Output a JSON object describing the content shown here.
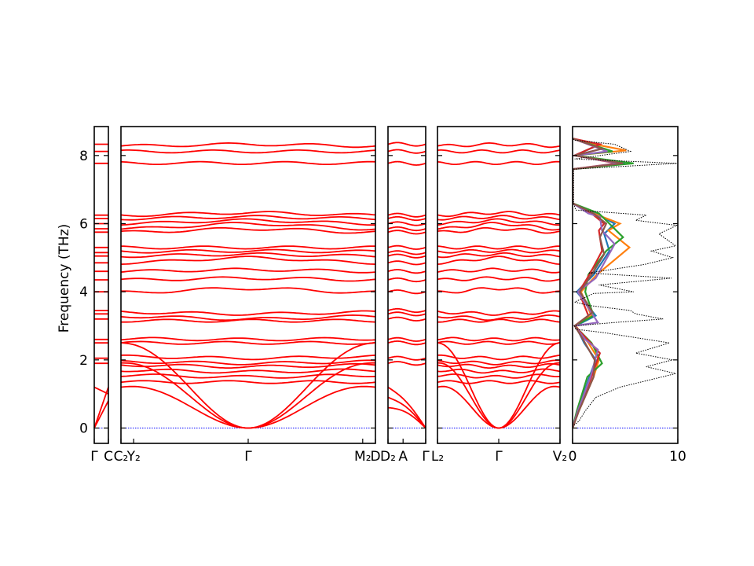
{
  "chart_data": {
    "type": "line",
    "ylabel": "Frequency (THz)",
    "ylim": [
      -0.45,
      8.85
    ],
    "y_ticks": [
      0,
      2,
      4,
      6,
      8
    ],
    "line_color": "#ff0000",
    "zero_line_color": "#0000ff",
    "dos_total_color": "#000000",
    "band_panels": [
      {
        "id": "p1",
        "ticks": [
          {
            "x": 0,
            "label": "Γ"
          },
          {
            "x": 1,
            "label": "C"
          }
        ]
      },
      {
        "id": "p2",
        "ticks": [
          {
            "x": 0,
            "label": "C₂"
          },
          {
            "x": 0.05,
            "label": "Y₂"
          },
          {
            "x": 0.5,
            "label": "Γ"
          },
          {
            "x": 0.95,
            "label": "M₂"
          },
          {
            "x": 1,
            "label": "D"
          }
        ]
      },
      {
        "id": "p3",
        "ticks": [
          {
            "x": 0,
            "label": "D₂"
          },
          {
            "x": 0.4,
            "label": "A"
          },
          {
            "x": 1,
            "label": "Γ"
          }
        ]
      },
      {
        "id": "p4",
        "ticks": [
          {
            "x": 0,
            "label": "L₂"
          },
          {
            "x": 0.5,
            "label": "Γ"
          },
          {
            "x": 1,
            "label": "V₂"
          }
        ]
      }
    ],
    "flat_bands": [
      8.33,
      8.12,
      7.77,
      6.25,
      6.15,
      6.0,
      5.85,
      5.75,
      5.3,
      5.15,
      5.05,
      4.85,
      4.6,
      4.35,
      4.0,
      3.45,
      3.35,
      3.2,
      2.6,
      2.5,
      2.05,
      1.9
    ],
    "gamma_modulated_bands": [
      {
        "edge": 8.28,
        "center": 8.33
      },
      {
        "edge": 8.12,
        "center": 8.12
      },
      {
        "edge": 7.78,
        "center": 7.78
      },
      {
        "edge": 6.25,
        "center": 6.32
      },
      {
        "edge": 6.15,
        "center": 6.2
      },
      {
        "edge": 6.0,
        "center": 6.1
      },
      {
        "edge": 5.85,
        "center": 6.0
      },
      {
        "edge": 5.75,
        "center": 5.85
      },
      {
        "edge": 5.3,
        "center": 5.3
      },
      {
        "edge": 5.18,
        "center": 5.2
      },
      {
        "edge": 5.05,
        "center": 5.1
      },
      {
        "edge": 4.85,
        "center": 5.0
      },
      {
        "edge": 4.6,
        "center": 4.65
      },
      {
        "edge": 4.35,
        "center": 4.4
      },
      {
        "edge": 3.98,
        "center": 4.1
      },
      {
        "edge": 3.4,
        "center": 3.35
      },
      {
        "edge": 3.28,
        "center": 3.2
      },
      {
        "edge": 3.15,
        "center": 3.15
      },
      {
        "edge": 2.62,
        "center": 2.6
      },
      {
        "edge": 2.5,
        "center": 2.5
      },
      {
        "edge": 2.1,
        "center": 2.05
      },
      {
        "edge": 1.95,
        "center": 1.9
      },
      {
        "edge": 1.85,
        "center": 1.8
      },
      {
        "edge": 1.7,
        "center": 1.65
      },
      {
        "edge": 1.55,
        "center": 1.5
      },
      {
        "edge": 1.35,
        "center": 1.35
      }
    ],
    "acoustic_branches": [
      {
        "edge": 1.2,
        "slope": 1.0
      },
      {
        "edge": 0.65,
        "slope": 1.0
      },
      {
        "edge": 0.0,
        "slope": 1.0
      }
    ],
    "dos": {
      "xlim": [
        0,
        10
      ],
      "x_ticks": [
        0,
        10
      ],
      "total": [
        [
          0,
          -0.45
        ],
        [
          0,
          0.05
        ],
        [
          0.6,
          0.2
        ],
        [
          1.2,
          0.5
        ],
        [
          2.2,
          0.9
        ],
        [
          4.5,
          1.2
        ],
        [
          8.5,
          1.5
        ],
        [
          9.8,
          1.6
        ],
        [
          7.0,
          1.8
        ],
        [
          9.5,
          2.0
        ],
        [
          6.0,
          2.2
        ],
        [
          9.2,
          2.5
        ],
        [
          3.0,
          2.8
        ],
        [
          0.3,
          2.9
        ],
        [
          0.2,
          3.0
        ],
        [
          4.0,
          3.1
        ],
        [
          8.6,
          3.2
        ],
        [
          6.0,
          3.35
        ],
        [
          5.5,
          3.45
        ],
        [
          1.5,
          3.6
        ],
        [
          0.2,
          3.7
        ],
        [
          2.0,
          3.95
        ],
        [
          5.8,
          4.0
        ],
        [
          2.5,
          4.2
        ],
        [
          9.4,
          4.4
        ],
        [
          1.5,
          4.55
        ],
        [
          6.8,
          4.8
        ],
        [
          9.5,
          5.0
        ],
        [
          7.5,
          5.2
        ],
        [
          9.8,
          5.35
        ],
        [
          8.2,
          5.7
        ],
        [
          9.9,
          5.95
        ],
        [
          6.0,
          6.1
        ],
        [
          7.0,
          6.25
        ],
        [
          0.3,
          6.4
        ],
        [
          0.1,
          6.6
        ],
        [
          0.1,
          7.6
        ],
        [
          9.9,
          7.77
        ],
        [
          0.2,
          7.9
        ],
        [
          5.5,
          8.12
        ],
        [
          4.0,
          8.33
        ],
        [
          0.2,
          8.45
        ],
        [
          0,
          8.5
        ]
      ],
      "partials": [
        {
          "color": "#1f77b4",
          "points": [
            [
              0,
              0
            ],
            [
              0.5,
              0.5
            ],
            [
              1.6,
              1.5
            ],
            [
              2.2,
              2.0
            ],
            [
              1.1,
              2.5
            ],
            [
              0.3,
              3.0
            ],
            [
              2.2,
              3.3
            ],
            [
              0.4,
              4.0
            ],
            [
              2.0,
              4.5
            ],
            [
              3.5,
              5.2
            ],
            [
              3.0,
              5.7
            ],
            [
              4.0,
              6.0
            ],
            [
              2.2,
              6.3
            ],
            [
              0,
              6.6
            ],
            [
              0,
              7.6
            ],
            [
              5.0,
              7.77
            ],
            [
              0.2,
              8.0
            ],
            [
              2.4,
              8.3
            ],
            [
              0,
              8.5
            ]
          ]
        },
        {
          "color": "#ff7f0e",
          "points": [
            [
              0,
              0
            ],
            [
              0.6,
              0.5
            ],
            [
              2.0,
              1.5
            ],
            [
              2.5,
              2.0
            ],
            [
              1.5,
              2.5
            ],
            [
              0.3,
              3.0
            ],
            [
              1.8,
              3.3
            ],
            [
              0.8,
              4.0
            ],
            [
              2.3,
              4.5
            ],
            [
              5.4,
              5.3
            ],
            [
              3.4,
              5.8
            ],
            [
              4.5,
              6.0
            ],
            [
              2.0,
              6.3
            ],
            [
              0,
              6.6
            ],
            [
              0,
              7.6
            ],
            [
              4.6,
              7.77
            ],
            [
              0.2,
              8.0
            ],
            [
              5.1,
              8.15
            ],
            [
              2.0,
              8.33
            ],
            [
              0,
              8.5
            ]
          ]
        },
        {
          "color": "#2ca02c",
          "points": [
            [
              0,
              0
            ],
            [
              0.4,
              0.5
            ],
            [
              1.4,
              1.5
            ],
            [
              2.8,
              1.9
            ],
            [
              1.8,
              2.5
            ],
            [
              0.2,
              3.0
            ],
            [
              2.0,
              3.3
            ],
            [
              1.2,
              4.0
            ],
            [
              1.5,
              4.5
            ],
            [
              3.2,
              5.2
            ],
            [
              4.8,
              5.6
            ],
            [
              3.5,
              6.0
            ],
            [
              2.5,
              6.3
            ],
            [
              0,
              6.6
            ],
            [
              0,
              7.6
            ],
            [
              5.8,
              7.77
            ],
            [
              0.2,
              8.0
            ],
            [
              3.8,
              8.12
            ],
            [
              0,
              8.5
            ]
          ]
        },
        {
          "color": "#d62728",
          "points": [
            [
              0,
              0
            ],
            [
              0.5,
              0.5
            ],
            [
              1.8,
              1.5
            ],
            [
              2.6,
              2.2
            ],
            [
              1.4,
              2.6
            ],
            [
              0.2,
              3.0
            ],
            [
              1.5,
              3.3
            ],
            [
              0.6,
              4.0
            ],
            [
              1.6,
              4.5
            ],
            [
              2.8,
              5.2
            ],
            [
              2.5,
              5.8
            ],
            [
              3.0,
              6.0
            ],
            [
              1.8,
              6.3
            ],
            [
              0,
              6.6
            ],
            [
              0,
              7.6
            ],
            [
              4.2,
              7.77
            ],
            [
              0.2,
              8.0
            ],
            [
              2.6,
              8.33
            ],
            [
              0,
              8.5
            ]
          ]
        },
        {
          "color": "#9467bd",
          "points": [
            [
              0,
              0
            ],
            [
              0.5,
              0.5
            ],
            [
              1.7,
              1.5
            ],
            [
              2.4,
              2.3
            ],
            [
              1.2,
              2.6
            ],
            [
              0.2,
              3.0
            ],
            [
              2.4,
              3.1
            ],
            [
              0.5,
              4.0
            ],
            [
              2.2,
              4.4
            ],
            [
              4.0,
              5.4
            ],
            [
              2.8,
              5.8
            ],
            [
              2.6,
              6.2
            ],
            [
              1.5,
              6.3
            ],
            [
              0,
              6.6
            ],
            [
              0,
              7.6
            ],
            [
              4.4,
              7.77
            ],
            [
              0.2,
              8.0
            ],
            [
              3.3,
              8.12
            ],
            [
              0,
              8.5
            ]
          ]
        },
        {
          "color": "#8c564b",
          "points": [
            [
              0,
              0
            ],
            [
              0.6,
              0.5
            ],
            [
              2.0,
              1.5
            ],
            [
              2.1,
              2.0
            ],
            [
              1.0,
              2.6
            ],
            [
              0.2,
              3.0
            ],
            [
              1.9,
              3.4
            ],
            [
              0.7,
              4.0
            ],
            [
              1.8,
              4.5
            ],
            [
              3.0,
              5.1
            ],
            [
              2.6,
              5.6
            ],
            [
              3.2,
              6.0
            ],
            [
              2.0,
              6.3
            ],
            [
              0,
              6.6
            ],
            [
              0,
              7.6
            ],
            [
              4.8,
              7.77
            ],
            [
              0.2,
              8.0
            ],
            [
              2.8,
              8.2
            ],
            [
              0,
              8.5
            ]
          ]
        }
      ]
    }
  }
}
